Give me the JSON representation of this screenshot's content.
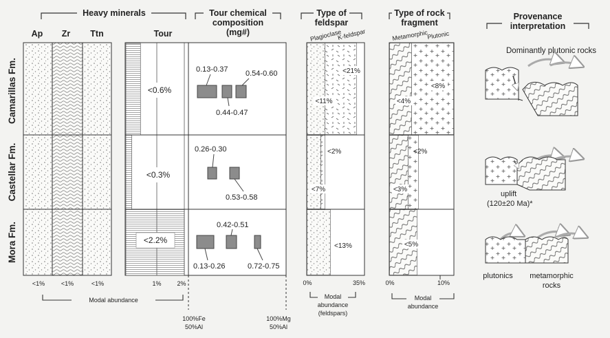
{
  "headers": {
    "heavy_minerals": "Heavy minerals",
    "tour_chemical": [
      "Tour chemical",
      "composition",
      "(mg#)"
    ],
    "feldspar": [
      "Type of",
      "feldspar"
    ],
    "rock_fragment": [
      "Type of rock",
      "fragment"
    ],
    "provenance": [
      "Provenance",
      "interpretation"
    ]
  },
  "mineral_columns": [
    "Ap",
    "Zr",
    "Ttn"
  ],
  "tour_column": "Tour",
  "formations": [
    "Camarillas Fm.",
    "Castellar Fm.",
    "Mora Fm."
  ],
  "heavy_minerals": {
    "col_max": [
      "<1%",
      "<1%",
      "<1%"
    ],
    "tour_ticks": [
      "1%",
      "2%"
    ],
    "tour_values": [
      "<0.6%",
      "<0.3%",
      "<2.2%"
    ],
    "tour_fraction_of_2pct": [
      0.25,
      0.1,
      1.0
    ],
    "modal_abundance": "Modal abundance"
  },
  "tour_chem": {
    "axis_left": [
      "100%Fe",
      "50%Al"
    ],
    "axis_right": [
      "100%Mg",
      "50%Al"
    ],
    "ranges": [
      [
        "0.13-0.37",
        "0.44-0.47",
        "0.54-0.60"
      ],
      [
        "0.26-0.30",
        "0.53-0.58"
      ],
      [
        "0.42-0.51",
        "0.13-0.26",
        "0.72-0.75"
      ]
    ]
  },
  "feldspar": {
    "labels": [
      "Plagioclase",
      "K-feldspar"
    ],
    "values": [
      [
        "<11%",
        "<21%"
      ],
      [
        "<7%",
        "<2%"
      ],
      [
        "<13%"
      ]
    ],
    "ticks": [
      "0%",
      "35%"
    ],
    "axis_title": [
      "Modal",
      "abundance",
      "(feldspars)"
    ]
  },
  "rock_fragment": {
    "labels": [
      "Metamorphic",
      "Plutonic"
    ],
    "values": [
      [
        "<4%",
        "<8%"
      ],
      [
        "<3%",
        "<2%"
      ],
      [
        "<5%"
      ]
    ],
    "ticks": [
      "0%",
      "10%"
    ],
    "axis_title": [
      "Modal",
      "abundance"
    ]
  },
  "provenance": {
    "top_label": "Dominantly plutonic rocks",
    "uplift": [
      "uplift",
      "(120±20 Ma)*"
    ],
    "bottom_labels": [
      "plutonics",
      "metamorphic",
      "rocks"
    ]
  }
}
